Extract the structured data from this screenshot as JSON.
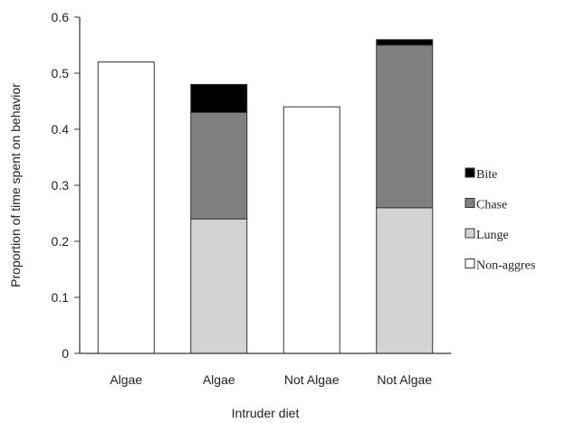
{
  "chart_data": {
    "type": "bar",
    "stacked": true,
    "title": "",
    "xlabel": "Intruder diet",
    "ylabel": "Proportion of time spent on behavior",
    "ylim": [
      0,
      0.6
    ],
    "yticks": [
      "0",
      "0.1",
      "0.2",
      "0.3",
      "0.4",
      "0.5",
      "0.6"
    ],
    "categories": [
      "Algae",
      "Algae",
      "Not Algae",
      "Not Algae"
    ],
    "series": [
      {
        "name": "Non-aggres",
        "color": "#ffffff",
        "values": [
          0.52,
          0,
          0.44,
          0
        ]
      },
      {
        "name": "Lunge",
        "color": "#d3d3d3",
        "values": [
          0,
          0.24,
          0,
          0.26
        ]
      },
      {
        "name": "Chase",
        "color": "#808080",
        "values": [
          0,
          0.19,
          0,
          0.29
        ]
      },
      {
        "name": "Bite",
        "color": "#000000",
        "values": [
          0,
          0.05,
          0,
          0.01
        ]
      }
    ],
    "legend": {
      "position": "right",
      "order": [
        "Bite",
        "Chase",
        "Lunge",
        "Non-aggres"
      ]
    },
    "grid": false
  }
}
